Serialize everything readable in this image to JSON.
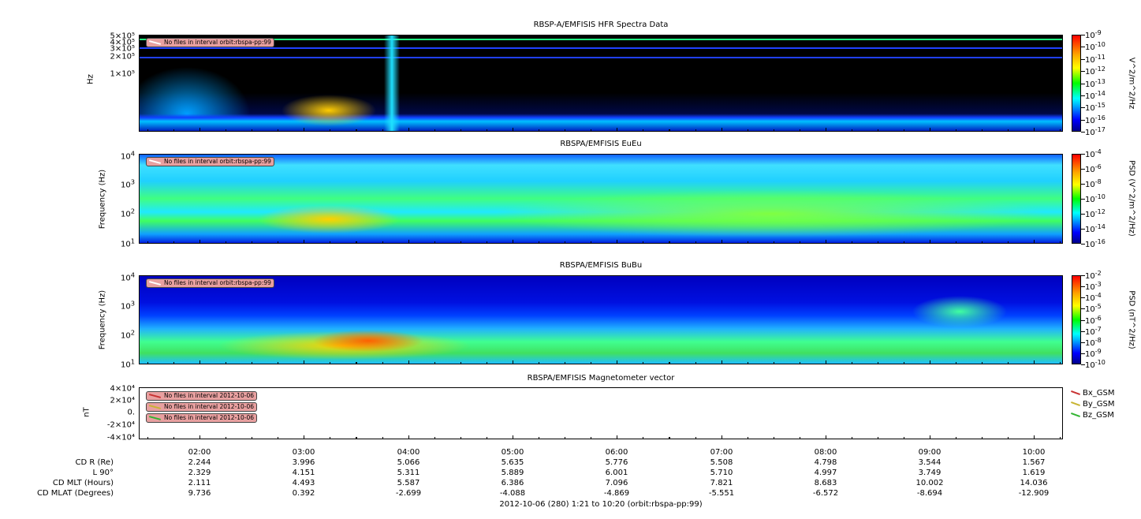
{
  "panels": [
    {
      "title": "RBSP-A/EMFISIS  HFR Spectra Data",
      "ylabel": "Hz",
      "yticks": [
        "5×10⁵",
        "4×10⁵",
        "3×10⁵",
        "2×10⁵",
        "1×10⁵"
      ],
      "notice": "No files in interval orbit:rbspa-pp:99",
      "cbar_label": "V^2/m^2/Hz",
      "cbar_ticks": [
        "-9",
        "-10",
        "-11",
        "-12",
        "-13",
        "-14",
        "-15",
        "-16",
        "-17"
      ]
    },
    {
      "title": "RBSPA/EMFISIS  EuEu",
      "ylabel": "Frequency (Hz)",
      "yticks": [
        "4",
        "3",
        "2",
        "1"
      ],
      "notice": "No files in interval orbit:rbspa-pp:99",
      "cbar_label": "PSD (V^2/m^2/Hz)",
      "cbar_ticks": [
        "-4",
        "-6",
        "-8",
        "-10",
        "-12",
        "-14",
        "-16"
      ]
    },
    {
      "title": "RBSPA/EMFISIS  BuBu",
      "ylabel": "Frequency (Hz)",
      "yticks": [
        "4",
        "3",
        "2",
        "1"
      ],
      "notice": "No files in interval orbit:rbspa-pp:99",
      "cbar_label": "PSD (nT^2/Hz)",
      "cbar_ticks": [
        "-2",
        "-3",
        "-4",
        "-5",
        "-6",
        "-7",
        "-8",
        "-9",
        "-10"
      ]
    },
    {
      "title": "RBSPA/EMFISIS  Magnetometer vector",
      "ylabel": "nT",
      "yticks": [
        "4×10⁴",
        "2×10⁴",
        "0.",
        "-2×10⁴",
        "-4×10⁴"
      ],
      "notices": [
        "No files in interval 2012-10-06",
        "No files in interval 2012-10-06",
        "No files in interval 2012-10-06"
      ],
      "legend": [
        {
          "label": "Bx_GSM",
          "color": "#c83232"
        },
        {
          "label": "By_GSM",
          "color": "#c8b432"
        },
        {
          "label": "Bz_GSM",
          "color": "#32b432"
        }
      ]
    }
  ],
  "xaxis": {
    "times": [
      "02:00",
      "03:00",
      "04:00",
      "05:00",
      "06:00",
      "07:00",
      "08:00",
      "09:00",
      "10:00"
    ]
  },
  "ephemeris": [
    {
      "label": "CD R (Re)",
      "values": [
        "2.244",
        "3.996",
        "5.066",
        "5.635",
        "5.776",
        "5.508",
        "4.798",
        "3.544",
        "1.567"
      ]
    },
    {
      "label": "L 90°",
      "values": [
        "2.329",
        "4.151",
        "5.311",
        "5.889",
        "6.001",
        "5.710",
        "4.997",
        "3.749",
        "1.619"
      ]
    },
    {
      "label": "CD MLT (Hours)",
      "values": [
        "2.111",
        "4.493",
        "5.587",
        "6.386",
        "7.096",
        "7.821",
        "8.683",
        "10.002",
        "14.036"
      ]
    },
    {
      "label": "CD MLAT (Degrees)",
      "values": [
        "9.736",
        "0.392",
        "-2.699",
        "-4.088",
        "-4.869",
        "-5.551",
        "-6.572",
        "-8.694",
        "-12.909"
      ]
    }
  ],
  "footer": "2012-10-06 (280) 1:21 to 10:20 (orbit:rbspa-pp:99)",
  "chart_data": [
    {
      "type": "heatmap",
      "title": "RBSP-A/EMFISIS  HFR Spectra Data",
      "ylabel": "Hz",
      "zlabel": "V^2/m^2/Hz",
      "zlim": [
        1e-17,
        1e-09
      ],
      "xlim": [
        "01:21",
        "10:20"
      ]
    },
    {
      "type": "heatmap",
      "title": "RBSPA/EMFISIS  EuEu",
      "ylabel": "Frequency (Hz)",
      "ylim": [
        10,
        10000
      ],
      "zlabel": "PSD (V^2/m^2/Hz)",
      "zlim": [
        1e-16,
        0.0001
      ]
    },
    {
      "type": "heatmap",
      "title": "RBSPA/EMFISIS  BuBu",
      "ylabel": "Frequency (Hz)",
      "ylim": [
        10,
        10000
      ],
      "zlabel": "PSD (nT^2/Hz)",
      "zlim": [
        1e-10,
        0.01
      ]
    },
    {
      "type": "line",
      "title": "RBSPA/EMFISIS  Magnetometer vector",
      "ylabel": "nT",
      "ylim": [
        -40000,
        40000
      ],
      "series": []
    }
  ]
}
